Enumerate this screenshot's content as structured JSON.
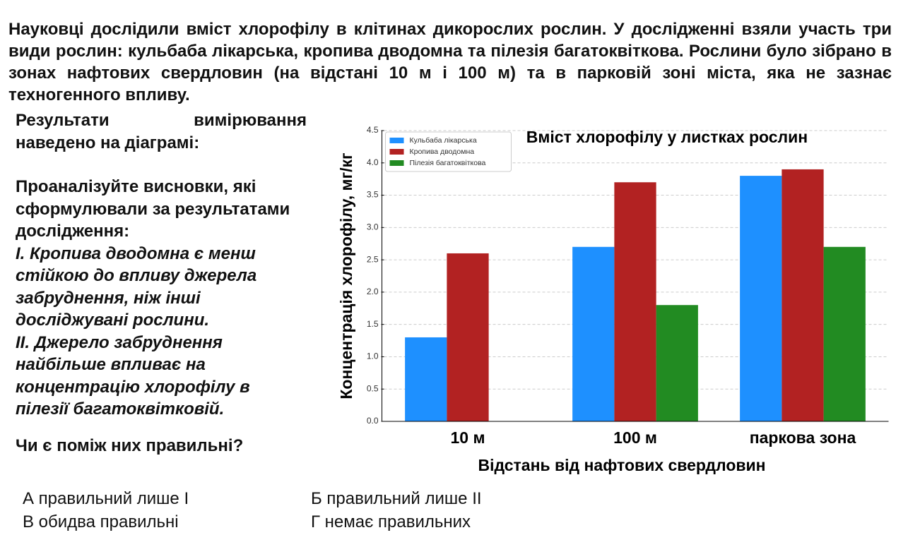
{
  "intro": "Науковці дослідили вміст хлорофілу в клітинах дикорослих рослин. У дослідженні взяли участь три види рослин: кульбаба лікарська, кропива дводомна та пілезія багатоквіткова. Рослини було зібрано в зонах нафтових свердловин (на відстані 10 м і 100 м) та в парковій зоні міста, яка не зазнає техногенного впливу.",
  "results_note": "Результати вимірювання наведено на діаграмі:",
  "task": "Проаналізуйте висновки, які сформулювали за результатами дослідження:",
  "statements": [
    "І. Кропива дводомна є менш стійкою до впливу джерела забруднення, ніж інші досліджувані рослини.",
    "ІІ. Джерело забруднення найбільше впливає на концентрацію хлорофілу в пілезії багатоквітковій."
  ],
  "question": "Чи є поміж них правильні?",
  "options": [
    "А правильний лише І",
    "Б правильний лише ІІ",
    "В обидва правильні",
    "Г немає правильних"
  ],
  "chart_data": {
    "type": "bar",
    "title": "Вміст хлорофілу у листках рослин",
    "x_label": "Відстань від нафтових свердловин",
    "y_label": "Концентрація хлорофілу, мг/кг",
    "categories": [
      "10 м",
      "100 м",
      "паркова зона"
    ],
    "series": [
      {
        "name": "Кульбаба лікарська",
        "color": "#1e90ff",
        "values": [
          1.3,
          2.7,
          3.8
        ]
      },
      {
        "name": "Кропива дводомна",
        "color": "#b22222",
        "values": [
          2.6,
          3.7,
          3.9
        ]
      },
      {
        "name": "Пілезія багатоквіткова",
        "color": "#228b22",
        "values": [
          0,
          1.8,
          2.7
        ]
      }
    ],
    "ylim": [
      0,
      4.5
    ],
    "yticks": [
      {
        "value": 0,
        "label": "0.0"
      },
      0.5,
      {
        "value": 1,
        "label": "1.0"
      },
      1.5,
      {
        "value": 2,
        "label": "2.0"
      },
      2.5,
      {
        "value": 3,
        "label": "3.0"
      },
      3.5,
      {
        "value": 4,
        "label": "4.0"
      },
      4.5
    ],
    "grid": true,
    "legend": "upper-left"
  }
}
